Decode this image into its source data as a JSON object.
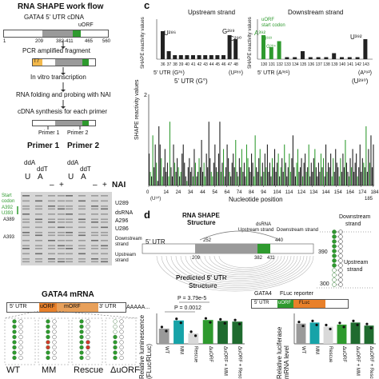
{
  "panel_letters": {
    "c": "c",
    "d": "d"
  },
  "workflow": {
    "title": "RNA SHAPE work flow",
    "cdna_label": "GATA4 5' UTR cDNA",
    "uorf": "uORF",
    "ticks": [
      "1",
      "209",
      "382-411",
      "465",
      "560"
    ],
    "pcr": "PCR amplified fragment",
    "t7": "T7",
    "transcription": "In vitro transcription",
    "folding_1": "RNA folding and probing with NAI",
    "synthesis": "cDNA synthesis for each primer",
    "primer1": "Primer 1",
    "primer2": "Primer 2"
  },
  "gel": {
    "primer1": "Primer 1",
    "primer2": "Primer 2",
    "lane_labels": [
      "ddA",
      "ddT",
      "ddA",
      "ddT"
    ],
    "lane_letters": [
      "U",
      "A",
      "U",
      "A"
    ],
    "minus_plus": [
      "–",
      "+",
      "–",
      "+"
    ],
    "nai": "NAI",
    "left_labels": [
      "Start",
      "codon",
      "A392",
      "U393",
      "A389",
      "A393"
    ],
    "right_labels": [
      "U289",
      "dsRNA",
      "A296",
      "U286",
      "Downstream strand",
      "Upstream strand"
    ]
  },
  "shape_chart": {
    "main_ylabel": "SHAPE reactivity values",
    "xlabel": "Nucleotide position",
    "ticks": [
      "0",
      "14",
      "24",
      "34",
      "44",
      "54",
      "64",
      "74",
      "84",
      "94",
      "104",
      "114",
      "124",
      "134",
      "144",
      "154",
      "164",
      "174",
      "184"
    ],
    "ytick_max": "2",
    "utr_left": "5' UTR (G°)",
    "utr_right": "(U²⁹⁰)",
    "end_label": "185",
    "end_sub": "(U⁵⁰)",
    "upstream": {
      "title": "Upstream strand",
      "ylabel": "SHAPE reactivity values",
      "positions": [
        "36",
        "37",
        "38",
        "39",
        "40",
        "41",
        "42",
        "43",
        "44",
        "45",
        "46",
        "47",
        "48"
      ],
      "utr": "5' UTR (G³⁶)",
      "utr_end": "(U²⁸⁹)",
      "labels": [
        "U²⁸⁶",
        "G²⁸⁹",
        "C²⁹⁰"
      ]
    },
    "downstream": {
      "title": "Downstream strand",
      "ylabel": "SHAPE reactivity values",
      "uorf_note": "uORF",
      "start_codon": "start codon",
      "positions": [
        "130",
        "131",
        "132",
        "133",
        "134",
        "135",
        "136",
        "137",
        "138",
        "139",
        "140",
        "141",
        "142",
        "143"
      ],
      "utr": "5' UTR (A³⁸¹)",
      "utr_end": "(A³⁹²)",
      "labels": [
        "A³⁹²",
        "U³⁸³",
        "G³⁸⁴",
        "U³⁹²"
      ]
    }
  },
  "chart_data": [
    {
      "type": "bar",
      "title": "",
      "xlabel": "Nucleotide position",
      "ylabel": "SHAPE reactivity values",
      "ylim": [
        0,
        2
      ],
      "x_start": 0,
      "x_end": 185,
      "series": [
        {
          "values": [
            0.7,
            0.3,
            0.2,
            1.1,
            0.4,
            0.9,
            0.5,
            0.1,
            1.3,
            0.9,
            0.6,
            0.2,
            0.4,
            0.8,
            0.3,
            0.5,
            0.2,
            1.4,
            0.4,
            0.2,
            0.9,
            0.5,
            0.3,
            0.6,
            0.4,
            0.2,
            0.3,
            0.7,
            0.9,
            0.5,
            0.2,
            0.1,
            0.4,
            0.6,
            0.3,
            0.4,
            0.2,
            0.8,
            0.5,
            0.2,
            0.3,
            0.6,
            0.4,
            1.0,
            0.3,
            0.5,
            0.2,
            0.7,
            0.4,
            1.4,
            0.6,
            0.3,
            0.2,
            0.5,
            0.9,
            0.4,
            0.3,
            0.7,
            1.4,
            0.3,
            0.5,
            0.8,
            0.2,
            0.4,
            0.9,
            0.6,
            0.3,
            0.2,
            0.5,
            0.7,
            0.4,
            1.0,
            0.3,
            0.2,
            0.6,
            0.4,
            0.8,
            0.3,
            0.5,
            0.2,
            0.9,
            0.6,
            0.4,
            0.3,
            0.7,
            0.5,
            0.2,
            1.1,
            0.4,
            0.3,
            0.6,
            0.8,
            0.2,
            0.5,
            0.3,
            0.7,
            0.4,
            0.9,
            0.3,
            0.5,
            0.2,
            0.6,
            0.4,
            0.8,
            0.3,
            0.5,
            0.7,
            0.2,
            0.4,
            0.6,
            0.3,
            0.9,
            0.5,
            0.2,
            0.4,
            0.7,
            0.3,
            0.6,
            1.1,
            0.4,
            0.2,
            0.5,
            0.8,
            0.3,
            0.4,
            0.6,
            0.2,
            0.5,
            0.7,
            0.3,
            0.4,
            0.9,
            0.2,
            0.5,
            0.3,
            0.6,
            0.8,
            0.4,
            0.2,
            0.5,
            0.3,
            0.7,
            0.4,
            0.6,
            0.2,
            0.9,
            0.3,
            0.5,
            0.4,
            0.7,
            0.2,
            0.6,
            0.3,
            0.8,
            0.5,
            0.4,
            0.2,
            0.6,
            0.3,
            0.7,
            0.4,
            1.0,
            0.5,
            0.3,
            0.2,
            0.6,
            0.4,
            0.8,
            0.3,
            0.5,
            0.7,
            0.2,
            0.4,
            0.9,
            0.3,
            0.6,
            0.5,
            0.4,
            1.3,
            0.3,
            0.8,
            0.5,
            1.1,
            0.4,
            0.9
          ]
        }
      ]
    },
    {
      "type": "bar",
      "title": "",
      "xlabel": "",
      "ylabel": "Relative luminescence (FLuc/RLuc)",
      "categories": [
        "WT",
        "MM",
        "Rescue",
        "ΔuORF",
        "ΔuORF + MM",
        "ΔuORF + Rescue"
      ],
      "series": [
        {
          "values": [
            0.65,
            1.0,
            0.45,
            1.02,
            0.98,
            0.95
          ]
        }
      ],
      "annotations": [
        "P = 3.79e-5",
        "P = 0.0012"
      ]
    },
    {
      "type": "bar",
      "title": "",
      "xlabel": "",
      "ylabel": "Relative luciferase mRNA level",
      "categories": [
        "WT",
        "MM",
        "Rescue",
        "ΔuORF",
        "ΔuORF + MM",
        "ΔuORF + Rescue"
      ],
      "series": [
        {
          "values": [
            1.0,
            1.05,
            0.85,
            0.95,
            1.05,
            0.9
          ]
        }
      ]
    }
  ],
  "structure": {
    "title1": "RNA SHAPE",
    "title2": "Structure",
    "ds_rna": "dsRNA",
    "upstream": "Upstream strand",
    "downstream": "Downstream strand",
    "utr": "5' UTR",
    "ticks_top": [
      "252",
      "440"
    ],
    "ticks_bottom": [
      "209",
      "382",
      "411"
    ],
    "predicted1": "Predicted 5' UTR",
    "predicted2": "Structure",
    "right_downstream1": "Downstream",
    "right_downstream2": "strand",
    "right_upstream1": "Upstream",
    "right_upstream2": "strand",
    "num_390": "390",
    "num_300": "300"
  },
  "gata4": {
    "title": "GATA4 mRNA",
    "segments": [
      "5' UTR",
      "uORF",
      "mORF",
      "3' UTR"
    ],
    "polya": "AAAAA...",
    "variants": [
      "WT",
      "MM",
      "Rescue",
      "ΔuORF"
    ],
    "reporter_title": "FLuc reporter",
    "reporter_gata4": "GATA4",
    "reporter_segments": [
      "5' UTR",
      "uORF",
      "FLuc"
    ]
  },
  "colors": {
    "green": "#2e9a2e",
    "dark_green": "#1f6b2f",
    "orange": "#e8802a",
    "teal": "#17a3a8",
    "gray": "#8a8a8a",
    "light_gray": "#d9d9d9",
    "bar_gray": "#9a9a9a",
    "red": "#d23a2a"
  }
}
